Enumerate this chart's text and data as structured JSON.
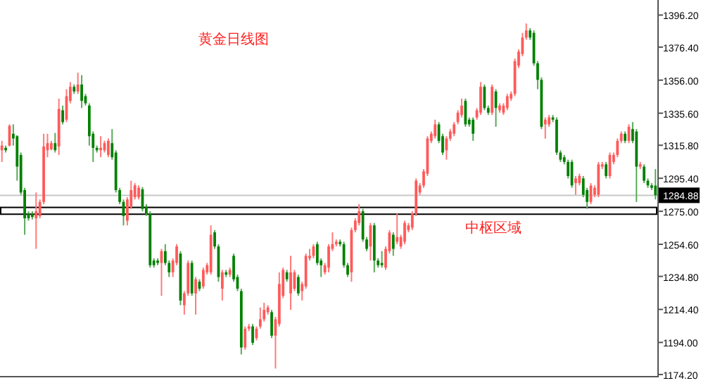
{
  "chart_data": {
    "type": "candlestick",
    "title": "黄金日线图",
    "categories": [
      null,
      null,
      null,
      null,
      null,
      null,
      null,
      null,
      null,
      null,
      null,
      null,
      null,
      null,
      null,
      null,
      null,
      null,
      null,
      null,
      null,
      null,
      null,
      null,
      null,
      null,
      null,
      null,
      null,
      null,
      null,
      null,
      null,
      null,
      null,
      null,
      null,
      null,
      null,
      null,
      null,
      null,
      null,
      null,
      null,
      null,
      null,
      null,
      null,
      null,
      null,
      null,
      null,
      null,
      null,
      null,
      null,
      null,
      null,
      null,
      null,
      null,
      null,
      null,
      null,
      null,
      null,
      null,
      null,
      null,
      null,
      null,
      null,
      null,
      null,
      null,
      null,
      null,
      null,
      null,
      null,
      null,
      null,
      null,
      null,
      null,
      null,
      null,
      null,
      null,
      null,
      null,
      null,
      null,
      null,
      null,
      null,
      null,
      null,
      null,
      null,
      null,
      null,
      null,
      null,
      null,
      null,
      null,
      null,
      null,
      null,
      null,
      null,
      null,
      null,
      null,
      null,
      null,
      null,
      null,
      null,
      null,
      null,
      null,
      null,
      null,
      null,
      null,
      null,
      null,
      null,
      null,
      null,
      null,
      null,
      null,
      null,
      null,
      null,
      null,
      null,
      null,
      null,
      null,
      null,
      null,
      null,
      null,
      null,
      null,
      null,
      null,
      null,
      null,
      null,
      null,
      null,
      null,
      null,
      null,
      null,
      null,
      null,
      null,
      null,
      null,
      null,
      null,
      null,
      null,
      null,
      null,
      null
    ],
    "ohlc": [
      [
        1312.7,
        1318.5,
        1305.5,
        1315.6
      ],
      [
        1314.2,
        1315.6,
        1311.3,
        1312.7
      ],
      [
        1315.6,
        1328.7,
        1315.0,
        1327.8
      ],
      [
        1322.9,
        1328.7,
        1315.6,
        1320.0
      ],
      [
        1321.4,
        1322.0,
        1293.9,
        1302.6
      ],
      [
        1309.8,
        1311.3,
        1285.2,
        1286.6
      ],
      [
        1288.1,
        1289.5,
        1260.5,
        1270.7
      ],
      [
        1273.6,
        1275.0,
        1269.2,
        1270.7
      ],
      [
        1273.6,
        1275.0,
        1270.0,
        1271.5
      ],
      [
        1270.7,
        1286.6,
        1251.8,
        1275.0
      ],
      [
        1272.1,
        1282.3,
        1270.7,
        1280.8
      ],
      [
        1280.8,
        1322.9,
        1279.4,
        1315.0
      ],
      [
        1312.7,
        1322.9,
        1308.4,
        1317.1
      ],
      [
        1313.3,
        1318.5,
        1312.7,
        1317.1
      ],
      [
        1317.1,
        1323.4,
        1311.3,
        1312.7
      ],
      [
        1315.0,
        1344.6,
        1309.8,
        1338.2
      ],
      [
        1337.4,
        1340.3,
        1328.7,
        1330.1
      ],
      [
        1331.6,
        1350.4,
        1330.1,
        1346.1
      ],
      [
        1343.2,
        1354.8,
        1341.7,
        1351.9
      ],
      [
        1351.9,
        1353.3,
        1347.5,
        1349.0
      ],
      [
        1349.0,
        1360.6,
        1347.5,
        1353.3
      ],
      [
        1353.3,
        1359.1,
        1338.8,
        1343.2
      ],
      [
        1346.1,
        1347.5,
        1340.3,
        1341.7
      ],
      [
        1340.3,
        1341.7,
        1315.6,
        1321.4
      ],
      [
        1322.9,
        1324.3,
        1305.5,
        1314.2
      ],
      [
        1314.2,
        1315.6,
        1311.3,
        1312.7
      ],
      [
        1312.7,
        1321.4,
        1308.4,
        1314.2
      ],
      [
        1312.7,
        1318.5,
        1311.3,
        1317.1
      ],
      [
        1309.8,
        1320.0,
        1308.4,
        1318.5
      ],
      [
        1317.1,
        1325.8,
        1306.9,
        1308.4
      ],
      [
        1311.3,
        1312.7,
        1286.6,
        1288.1
      ],
      [
        1288.1,
        1289.5,
        1279.4,
        1280.8
      ],
      [
        1280.8,
        1282.3,
        1266.3,
        1272.1
      ],
      [
        1269.2,
        1283.7,
        1266.3,
        1282.3
      ],
      [
        1277.9,
        1293.9,
        1276.5,
        1288.1
      ],
      [
        1283.7,
        1292.4,
        1282.3,
        1291.0
      ],
      [
        1283.7,
        1291.0,
        1282.3,
        1289.5
      ],
      [
        1288.6,
        1290.0,
        1275.0,
        1276.5
      ],
      [
        1277.9,
        1279.4,
        1272.1,
        1273.6
      ],
      [
        1273.6,
        1275.0,
        1240.2,
        1241.7
      ],
      [
        1244.6,
        1246.0,
        1240.2,
        1241.7
      ],
      [
        1244.6,
        1246.0,
        1241.7,
        1243.1
      ],
      [
        1243.1,
        1251.8,
        1222.8,
        1250.4
      ],
      [
        1250.4,
        1254.7,
        1241.7,
        1243.1
      ],
      [
        1243.1,
        1244.6,
        1234.4,
        1237.3
      ],
      [
        1237.3,
        1246.0,
        1234.4,
        1244.6
      ],
      [
        1243.1,
        1254.7,
        1241.7,
        1253.3
      ],
      [
        1248.9,
        1250.4,
        1217.0,
        1219.9
      ],
      [
        1217.0,
        1225.7,
        1211.2,
        1224.3
      ],
      [
        1224.3,
        1244.6,
        1222.8,
        1243.1
      ],
      [
        1243.1,
        1244.6,
        1222.8,
        1224.3
      ],
      [
        1224.3,
        1234.4,
        1211.2,
        1233.0
      ],
      [
        1231.5,
        1233.0,
        1225.7,
        1227.2
      ],
      [
        1228.6,
        1240.2,
        1227.2,
        1238.8
      ],
      [
        1237.3,
        1243.1,
        1235.9,
        1241.7
      ],
      [
        1237.3,
        1266.3,
        1235.9,
        1260.5
      ],
      [
        1262.0,
        1263.4,
        1251.8,
        1253.3
      ],
      [
        1253.3,
        1254.7,
        1231.5,
        1234.4
      ],
      [
        1227.2,
        1238.8,
        1219.9,
        1237.3
      ],
      [
        1237.3,
        1238.8,
        1234.4,
        1235.9
      ],
      [
        1235.9,
        1240.2,
        1234.4,
        1238.8
      ],
      [
        1247.5,
        1248.9,
        1231.5,
        1233.0
      ],
      [
        1234.4,
        1235.9,
        1225.7,
        1227.2
      ],
      [
        1225.7,
        1227.2,
        1186.6,
        1190.9
      ],
      [
        1190.9,
        1203.9,
        1189.5,
        1202.5
      ],
      [
        1202.5,
        1205.4,
        1201.0,
        1203.9
      ],
      [
        1203.9,
        1205.4,
        1192.4,
        1193.8
      ],
      [
        1196.7,
        1203.9,
        1195.3,
        1202.5
      ],
      [
        1203.9,
        1215.6,
        1202.5,
        1208.3
      ],
      [
        1208.3,
        1218.5,
        1206.9,
        1214.1
      ],
      [
        1212.7,
        1217.0,
        1211.2,
        1215.6
      ],
      [
        1212.7,
        1214.1,
        1196.7,
        1198.2
      ],
      [
        1198.2,
        1209.8,
        1177.9,
        1208.3
      ],
      [
        1205.4,
        1237.3,
        1203.9,
        1230.1
      ],
      [
        1222.8,
        1240.2,
        1221.4,
        1238.8
      ],
      [
        1237.3,
        1238.8,
        1231.5,
        1233.0
      ],
      [
        1224.3,
        1247.5,
        1214.1,
        1237.3
      ],
      [
        1227.2,
        1238.8,
        1225.7,
        1237.3
      ],
      [
        1234.4,
        1235.9,
        1222.8,
        1224.3
      ],
      [
        1225.7,
        1231.5,
        1219.9,
        1230.1
      ],
      [
        1228.6,
        1248.9,
        1227.2,
        1247.5
      ],
      [
        1246.0,
        1251.8,
        1244.6,
        1247.5
      ],
      [
        1247.5,
        1254.7,
        1246.0,
        1253.3
      ],
      [
        1254.7,
        1256.2,
        1241.7,
        1243.1
      ],
      [
        1244.6,
        1246.0,
        1234.4,
        1241.7
      ],
      [
        1237.3,
        1243.1,
        1235.9,
        1241.7
      ],
      [
        1240.2,
        1254.7,
        1237.3,
        1253.3
      ],
      [
        1251.8,
        1262.0,
        1250.4,
        1254.7
      ],
      [
        1254.7,
        1257.6,
        1253.3,
        1256.2
      ],
      [
        1256.2,
        1257.6,
        1253.3,
        1254.7
      ],
      [
        1254.7,
        1256.2,
        1240.2,
        1241.7
      ],
      [
        1241.7,
        1243.1,
        1234.4,
        1235.9
      ],
      [
        1237.3,
        1264.9,
        1231.5,
        1263.4
      ],
      [
        1263.4,
        1270.7,
        1262.0,
        1269.2
      ],
      [
        1267.8,
        1279.4,
        1266.3,
        1275.0
      ],
      [
        1275.0,
        1276.5,
        1256.2,
        1257.6
      ],
      [
        1257.6,
        1259.1,
        1250.4,
        1251.8
      ],
      [
        1253.3,
        1267.8,
        1244.6,
        1266.3
      ],
      [
        1266.3,
        1267.8,
        1237.3,
        1244.6
      ],
      [
        1244.6,
        1246.0,
        1240.2,
        1241.7
      ],
      [
        1243.1,
        1250.4,
        1240.2,
        1241.7
      ],
      [
        1240.2,
        1253.3,
        1238.8,
        1251.8
      ],
      [
        1250.4,
        1263.4,
        1248.9,
        1261.9
      ],
      [
        1260.5,
        1262.0,
        1247.5,
        1251.8
      ],
      [
        1256.2,
        1273.6,
        1254.7,
        1259.1
      ],
      [
        1253.3,
        1260.5,
        1251.8,
        1259.1
      ],
      [
        1256.2,
        1269.2,
        1254.7,
        1267.8
      ],
      [
        1263.4,
        1267.8,
        1262.0,
        1266.3
      ],
      [
        1264.9,
        1275.0,
        1263.4,
        1273.6
      ],
      [
        1273.6,
        1295.3,
        1272.1,
        1293.9
      ],
      [
        1286.6,
        1292.4,
        1285.2,
        1290.9
      ],
      [
        1290.9,
        1301.1,
        1289.5,
        1299.7
      ],
      [
        1298.2,
        1321.4,
        1296.8,
        1320.0
      ],
      [
        1318.5,
        1324.3,
        1317.1,
        1322.9
      ],
      [
        1321.4,
        1331.6,
        1320.0,
        1328.7
      ],
      [
        1328.7,
        1330.1,
        1317.1,
        1318.5
      ],
      [
        1321.4,
        1322.9,
        1309.8,
        1311.3
      ],
      [
        1312.7,
        1321.4,
        1306.9,
        1320.0
      ],
      [
        1319.9,
        1325.8,
        1318.5,
        1324.3
      ],
      [
        1322.9,
        1330.1,
        1321.4,
        1328.7
      ],
      [
        1330.1,
        1337.4,
        1328.7,
        1335.9
      ],
      [
        1334.5,
        1344.6,
        1333.0,
        1340.3
      ],
      [
        1343.2,
        1344.6,
        1327.2,
        1328.7
      ],
      [
        1331.6,
        1333.0,
        1327.2,
        1328.7
      ],
      [
        1331.6,
        1333.0,
        1318.5,
        1322.9
      ],
      [
        1333.0,
        1338.8,
        1331.6,
        1337.4
      ],
      [
        1335.9,
        1354.8,
        1334.5,
        1351.9
      ],
      [
        1351.9,
        1353.3,
        1337.4,
        1338.8
      ],
      [
        1338.8,
        1340.3,
        1334.5,
        1335.9
      ],
      [
        1335.9,
        1353.3,
        1334.5,
        1351.9
      ],
      [
        1349.0,
        1350.4,
        1327.2,
        1338.8
      ],
      [
        1337.4,
        1341.7,
        1335.9,
        1340.3
      ],
      [
        1335.9,
        1341.7,
        1334.5,
        1340.3
      ],
      [
        1338.8,
        1347.5,
        1337.4,
        1346.1
      ],
      [
        1344.6,
        1349.0,
        1343.2,
        1347.5
      ],
      [
        1347.5,
        1369.3,
        1346.1,
        1367.8
      ],
      [
        1364.9,
        1375.0,
        1363.5,
        1373.6
      ],
      [
        1372.1,
        1385.2,
        1370.7,
        1382.3
      ],
      [
        1382.3,
        1391.0,
        1380.9,
        1386.7
      ],
      [
        1386.7,
        1388.1,
        1380.9,
        1382.3
      ],
      [
        1385.2,
        1386.7,
        1364.9,
        1366.4
      ],
      [
        1366.4,
        1367.8,
        1350.4,
        1356.2
      ],
      [
        1356.2,
        1357.7,
        1325.8,
        1327.2
      ],
      [
        1328.7,
        1333.0,
        1319.9,
        1331.6
      ],
      [
        1328.7,
        1334.5,
        1327.2,
        1333.0
      ],
      [
        1333.0,
        1334.5,
        1330.1,
        1331.6
      ],
      [
        1331.6,
        1333.0,
        1309.8,
        1311.3
      ],
      [
        1311.3,
        1312.7,
        1305.5,
        1306.9
      ],
      [
        1308.4,
        1309.8,
        1304.0,
        1305.5
      ],
      [
        1305.5,
        1306.9,
        1295.3,
        1296.8
      ],
      [
        1305.5,
        1306.9,
        1289.5,
        1291.0
      ],
      [
        1292.4,
        1296.8,
        1285.2,
        1295.3
      ],
      [
        1292.4,
        1298.2,
        1291.0,
        1296.8
      ],
      [
        1295.3,
        1296.8,
        1283.7,
        1285.2
      ],
      [
        1288.1,
        1289.5,
        1276.5,
        1280.8
      ],
      [
        1280.8,
        1292.4,
        1279.4,
        1290.9
      ],
      [
        1285.2,
        1291.0,
        1283.7,
        1289.5
      ],
      [
        1285.2,
        1305.5,
        1283.7,
        1304.0
      ],
      [
        1302.6,
        1305.5,
        1301.1,
        1304.0
      ],
      [
        1304.0,
        1305.5,
        1295.3,
        1296.8
      ],
      [
        1296.8,
        1311.3,
        1295.3,
        1309.8
      ],
      [
        1305.5,
        1311.3,
        1304.0,
        1309.8
      ],
      [
        1309.8,
        1320.0,
        1308.4,
        1318.5
      ],
      [
        1318.5,
        1324.3,
        1317.1,
        1322.9
      ],
      [
        1322.9,
        1324.3,
        1317.1,
        1318.5
      ],
      [
        1318.5,
        1328.7,
        1317.1,
        1327.2
      ],
      [
        1325.8,
        1330.1,
        1317.1,
        1318.5
      ],
      [
        1324.3,
        1325.8,
        1280.8,
        1302.6
      ],
      [
        1302.6,
        1305.5,
        1301.1,
        1304.0
      ],
      [
        1302.6,
        1304.0,
        1292.4,
        1293.9
      ],
      [
        1293.9,
        1295.3,
        1289.5,
        1291.0
      ],
      [
        1291.0,
        1292.4,
        1288.1,
        1289.5
      ],
      [
        1290.9,
        1301.1,
        1282.3,
        1284.88
      ]
    ],
    "ylim": [
      1173.3,
      1405.5
    ],
    "yticks": [
      {
        "value": 1396.2,
        "label": "1396.20"
      },
      {
        "value": 1376.4,
        "label": "1376.40"
      },
      {
        "value": 1356,
        "label": "1356.00"
      },
      {
        "value": 1335.6,
        "label": "1335.60"
      },
      {
        "value": 1315.8,
        "label": "1315.80"
      },
      {
        "value": 1295.4,
        "label": "1295.40"
      },
      {
        "value": 1275,
        "label": "1275.00"
      },
      {
        "value": 1254.6,
        "label": "1254.60"
      },
      {
        "value": 1234.8,
        "label": "1234.80"
      },
      {
        "value": 1214.4,
        "label": "1214.40"
      },
      {
        "value": 1194,
        "label": "1194.00"
      },
      {
        "value": 1174.2,
        "label": "1174.20"
      }
    ],
    "ref_lines": [
      {
        "axis": "y",
        "value": 1284.88,
        "label": "1284.88",
        "color": "#c8c8c8"
      }
    ],
    "bands": [
      {
        "axis": "y",
        "from": 1273.2,
        "to": 1277.4,
        "label": "中枢区域",
        "color": "#000000"
      }
    ],
    "tick_labels": "y"
  }
}
